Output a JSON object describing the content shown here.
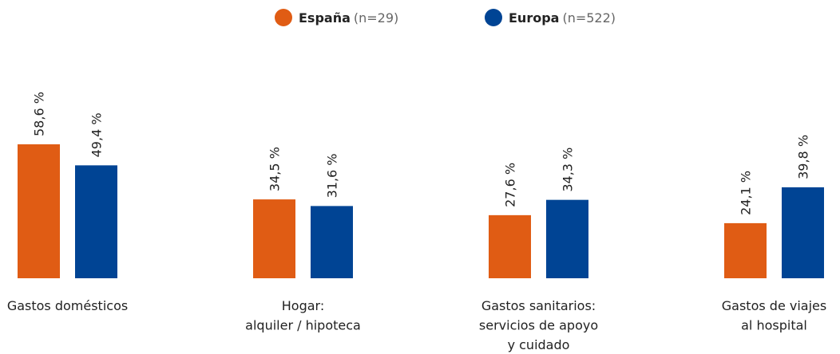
{
  "chart_data": {
    "type": "bar",
    "categories": [
      [
        "Gastos domésticos"
      ],
      [
        "Hogar:",
        "alquiler / hipoteca"
      ],
      [
        "Gastos sanitarios:",
        "servicios de apoyo",
        "y cuidado"
      ],
      [
        "Gastos de viajes",
        "al hospital"
      ]
    ],
    "series": [
      {
        "name": "España",
        "sample": "(n=29)",
        "color": "#e05c14",
        "values": [
          58.6,
          34.5,
          27.6,
          24.1
        ],
        "value_labels": [
          "58,6 %",
          "34,5 %",
          "27,6 %",
          "24,1 %"
        ]
      },
      {
        "name": "Europa",
        "sample": "(n=522)",
        "color": "#004494",
        "values": [
          49.4,
          31.6,
          34.3,
          39.8
        ],
        "value_labels": [
          "49,4 %",
          "31,6 %",
          "34,3 %",
          "39,8 %"
        ]
      }
    ]
  }
}
